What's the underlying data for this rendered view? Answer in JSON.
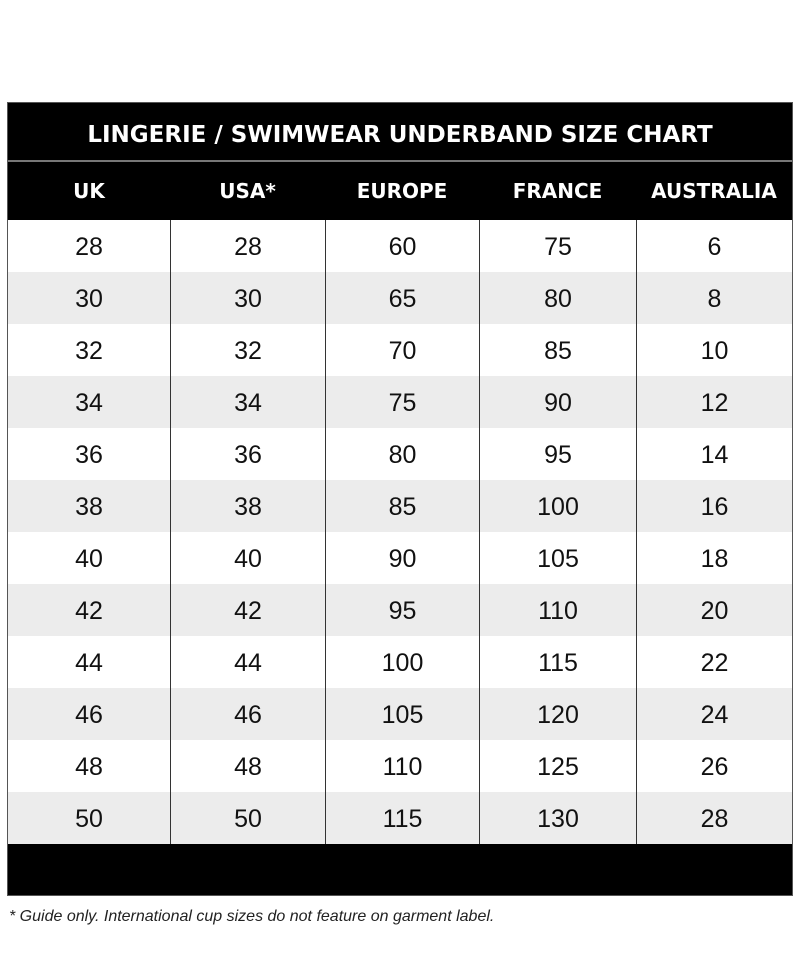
{
  "title": "LINGERIE / SWIMWEAR UNDERBAND SIZE CHART",
  "headers": [
    "UK",
    "USA*",
    "EUROPE",
    "FRANCE",
    "AUSTRALIA"
  ],
  "rows": [
    [
      "28",
      "28",
      "60",
      "75",
      "6"
    ],
    [
      "30",
      "30",
      "65",
      "80",
      "8"
    ],
    [
      "32",
      "32",
      "70",
      "85",
      "10"
    ],
    [
      "34",
      "34",
      "75",
      "90",
      "12"
    ],
    [
      "36",
      "36",
      "80",
      "95",
      "14"
    ],
    [
      "38",
      "38",
      "85",
      "100",
      "16"
    ],
    [
      "40",
      "40",
      "90",
      "105",
      "18"
    ],
    [
      "42",
      "42",
      "95",
      "110",
      "20"
    ],
    [
      "44",
      "44",
      "100",
      "115",
      "22"
    ],
    [
      "46",
      "46",
      "105",
      "120",
      "24"
    ],
    [
      "48",
      "48",
      "110",
      "125",
      "26"
    ],
    [
      "50",
      "50",
      "115",
      "130",
      "28"
    ]
  ],
  "footnote": "* Guide only. International cup sizes do not feature on garment label."
}
